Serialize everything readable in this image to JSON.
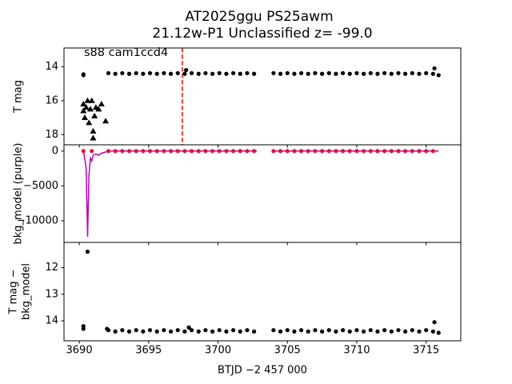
{
  "chart_data": [
    {
      "type": "scatter",
      "title": "AT2025ggu  PS25awm",
      "subtitle": "21.12w-P1 Unclassified z= -99.0",
      "ylabel": [
        "T mag"
      ],
      "annotation": "s88 cam1ccd4",
      "xlim": [
        3688.9,
        3717.5
      ],
      "ylim": [
        18.6,
        12.9
      ],
      "yticks": [
        14,
        16,
        18
      ],
      "vline": {
        "x": 3697.43,
        "color": "red"
      },
      "series": [
        {
          "marker": "o",
          "color": "#000000",
          "x": [
            3690.3,
            3690.3,
            3692.1,
            3692.6,
            3693.1,
            3693.6,
            3694.1,
            3694.6,
            3695.1,
            3695.6,
            3696.1,
            3696.6,
            3697.1,
            3697.6,
            3698.1,
            3698.6,
            3699.1,
            3699.6,
            3700.1,
            3700.6,
            3701.1,
            3701.6,
            3702.1,
            3702.6,
            3697.7,
            3704.0,
            3704.5,
            3705.0,
            3705.5,
            3706.0,
            3706.5,
            3707.0,
            3707.5,
            3708.0,
            3708.5,
            3709.0,
            3709.5,
            3710.0,
            3710.5,
            3711.0,
            3711.5,
            3712.0,
            3712.5,
            3713.0,
            3713.5,
            3714.0,
            3714.5,
            3715.0,
            3715.5,
            3715.6,
            3715.9
          ],
          "values": [
            14.5,
            14.45,
            14.38,
            14.42,
            14.38,
            14.42,
            14.38,
            14.42,
            14.38,
            14.42,
            14.38,
            14.42,
            14.38,
            14.42,
            14.38,
            14.42,
            14.38,
            14.42,
            14.38,
            14.42,
            14.38,
            14.42,
            14.38,
            14.42,
            14.2,
            14.38,
            14.42,
            14.38,
            14.42,
            14.38,
            14.42,
            14.38,
            14.42,
            14.38,
            14.42,
            14.38,
            14.42,
            14.38,
            14.42,
            14.38,
            14.42,
            14.38,
            14.42,
            14.38,
            14.42,
            14.38,
            14.42,
            14.38,
            14.42,
            14.1,
            14.5
          ]
        },
        {
          "marker": "^",
          "color": "#000000",
          "x": [
            3690.3,
            3690.3,
            3690.4,
            3690.5,
            3690.6,
            3690.7,
            3690.8,
            3690.9,
            3691.0,
            3691.0,
            3691.1,
            3691.2,
            3691.4,
            3691.6,
            3691.9
          ],
          "values": [
            16.6,
            16.2,
            17.0,
            16.4,
            16.0,
            17.3,
            16.5,
            16.0,
            17.8,
            18.2,
            16.9,
            16.4,
            16.5,
            16.2,
            17.2
          ]
        }
      ]
    },
    {
      "type": "scatter",
      "ylabel": [
        "bkg_model (purple)"
      ],
      "xlim": [
        3688.9,
        3717.5
      ],
      "ylim": [
        -13100,
        900
      ],
      "yticks": [
        0,
        {
          "value": -5000,
          "label": "−5000"
        },
        {
          "value": -10000,
          "label": "−10000"
        }
      ],
      "series": [
        {
          "marker": "line",
          "color": "#bf00bf",
          "x": [
            3690.3,
            3690.4,
            3690.5,
            3690.6,
            3690.7,
            3690.8,
            3690.9,
            3691.0,
            3691.2,
            3691.4,
            3691.6,
            3691.8,
            3692.0,
            3692.1,
            3702.8,
            3703.4,
            3704.0,
            3715.9
          ],
          "values": [
            -50,
            -1100,
            -2500,
            -12300,
            -3500,
            -1000,
            -1400,
            -600,
            -400,
            -600,
            -300,
            -200,
            -50,
            0,
            0,
            null,
            0,
            0
          ]
        },
        {
          "marker": "o",
          "color": "#dc143c",
          "x": [
            3690.3,
            3690.9,
            3692.1,
            3692.6,
            3693.1,
            3693.6,
            3694.1,
            3694.6,
            3695.1,
            3695.6,
            3696.1,
            3696.6,
            3697.1,
            3697.6,
            3698.1,
            3698.6,
            3699.1,
            3699.6,
            3700.1,
            3700.6,
            3701.1,
            3701.6,
            3702.1,
            3702.6,
            3704.0,
            3704.5,
            3705.0,
            3705.5,
            3706.0,
            3706.5,
            3707.0,
            3707.5,
            3708.0,
            3708.5,
            3709.0,
            3709.5,
            3710.0,
            3710.5,
            3711.0,
            3711.5,
            3712.0,
            3712.5,
            3713.0,
            3713.5,
            3714.0,
            3714.5,
            3715.0,
            3715.5
          ],
          "values": [
            0,
            0,
            0,
            0,
            0,
            0,
            0,
            0,
            0,
            0,
            0,
            0,
            0,
            0,
            0,
            0,
            0,
            0,
            0,
            0,
            0,
            0,
            0,
            0,
            0,
            0,
            0,
            0,
            0,
            0,
            0,
            0,
            0,
            0,
            0,
            0,
            0,
            0,
            0,
            0,
            0,
            0,
            0,
            0,
            0,
            0,
            0,
            0
          ]
        }
      ]
    },
    {
      "type": "scatter",
      "ylabel": [
        "T mag −",
        "bkg_model"
      ],
      "xlabel": "BTJD −2 457 000",
      "xlim": [
        3688.9,
        3717.5
      ],
      "xticks": [
        3690,
        3695,
        3700,
        3705,
        3710,
        3715
      ],
      "ylim": [
        14.75,
        11.05
      ],
      "yticks": [
        12,
        13,
        14
      ],
      "series": [
        {
          "marker": "o",
          "color": "#000000",
          "x": [
            3690.3,
            3690.3,
            3690.6,
            3692.0,
            3692.1,
            3692.6,
            3693.1,
            3693.6,
            3694.1,
            3694.6,
            3695.1,
            3695.6,
            3696.1,
            3696.6,
            3697.1,
            3697.6,
            3698.1,
            3698.6,
            3699.1,
            3699.6,
            3700.1,
            3700.6,
            3701.1,
            3701.6,
            3702.1,
            3702.6,
            3697.9,
            3704.0,
            3704.5,
            3705.0,
            3705.5,
            3706.0,
            3706.5,
            3707.0,
            3707.5,
            3708.0,
            3708.5,
            3709.0,
            3709.5,
            3710.0,
            3710.5,
            3711.0,
            3711.5,
            3712.0,
            3712.5,
            3713.0,
            3713.5,
            3714.0,
            3714.5,
            3715.0,
            3715.5,
            3715.6,
            3715.9
          ],
          "values": [
            14.2,
            14.3,
            11.4,
            14.3,
            14.35,
            14.4,
            14.35,
            14.4,
            14.35,
            14.4,
            14.35,
            14.4,
            14.35,
            14.4,
            14.35,
            14.4,
            14.35,
            14.4,
            14.35,
            14.4,
            14.35,
            14.4,
            14.35,
            14.4,
            14.35,
            14.4,
            14.25,
            14.35,
            14.4,
            14.35,
            14.4,
            14.35,
            14.4,
            14.35,
            14.4,
            14.35,
            14.4,
            14.35,
            14.4,
            14.35,
            14.4,
            14.35,
            14.4,
            14.35,
            14.4,
            14.35,
            14.4,
            14.35,
            14.4,
            14.35,
            14.4,
            14.05,
            14.45
          ]
        }
      ]
    }
  ]
}
